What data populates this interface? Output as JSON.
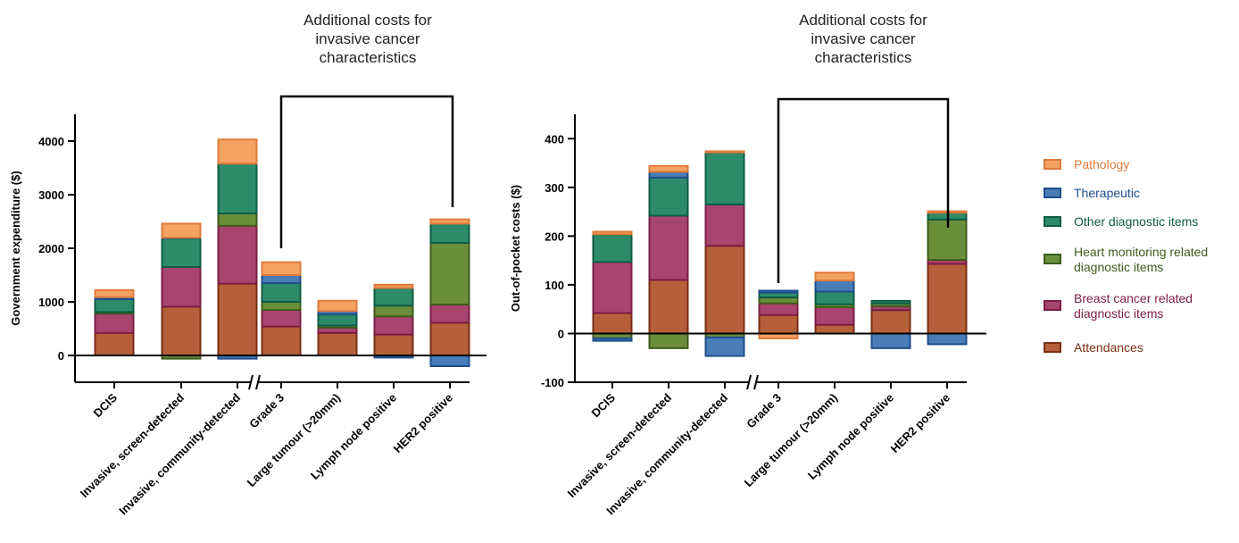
{
  "legend": [
    {
      "key": "pathology",
      "label": "Pathology",
      "fill": "#F4A261",
      "stroke": "#E07A3A",
      "text": "#E07A3A"
    },
    {
      "key": "therapeutic",
      "label": "Therapeutic",
      "fill": "#4A7DB8",
      "stroke": "#1F4E8C",
      "text": "#1F4E8C"
    },
    {
      "key": "other",
      "label": "Other diagnostic items",
      "fill": "#2E8B6A",
      "stroke": "#0E5C45",
      "text": "#0E5C45"
    },
    {
      "key": "heart",
      "label": "Heart monitoring related\ndiagnostic items",
      "fill": "#6B8E3A",
      "stroke": "#3D5C1C",
      "text": "#3D5C1C"
    },
    {
      "key": "breast",
      "label": "Breast cancer related\ndiagnostic items",
      "fill": "#A8456E",
      "stroke": "#7A1E45",
      "text": "#7A1E45"
    },
    {
      "key": "attend",
      "label": "Attendances",
      "fill": "#B5603A",
      "stroke": "#7A2E15",
      "text": "#7A2E15"
    }
  ],
  "chart_data": [
    {
      "type": "bar",
      "stacked": true,
      "ylabel": "Government expenditure ($)",
      "ylim": [
        -500,
        4500
      ],
      "yticks": [
        0,
        1000,
        2000,
        3000,
        4000
      ],
      "annotation": "Additional costs for\ninvasive cancer\ncharacteristics",
      "categories": [
        "DCIS",
        "Invasive, screen-detected",
        "Invasive, community-detected",
        "Grade 3",
        "Large tumour (>20mm)",
        "Lymph node positive",
        "HER2 positive"
      ],
      "axis_break_after": 2,
      "series": [
        {
          "key": "attend",
          "values": [
            420,
            910,
            1340,
            540,
            420,
            390,
            610
          ]
        },
        {
          "key": "breast",
          "values": [
            360,
            740,
            1080,
            310,
            100,
            340,
            340
          ]
        },
        {
          "key": "heart",
          "values": [
            30,
            -60,
            230,
            150,
            40,
            200,
            1150
          ]
        },
        {
          "key": "other",
          "values": [
            240,
            540,
            930,
            350,
            210,
            330,
            360
          ]
        },
        {
          "key": "therapeutic",
          "values": [
            40,
            10,
            -60,
            150,
            60,
            -40,
            -200
          ]
        },
        {
          "key": "pathology",
          "values": [
            130,
            260,
            450,
            240,
            190,
            60,
            80
          ]
        }
      ]
    },
    {
      "type": "bar",
      "stacked": true,
      "ylabel": "Out-of-pocket costs ($)",
      "ylim": [
        -100,
        450
      ],
      "yticks": [
        -100,
        0,
        100,
        200,
        300,
        400
      ],
      "annotation": "Additional costs for\ninvasive cancer\ncharacteristics",
      "categories": [
        "DCIS",
        "Invasive, screen-detected",
        "Invasive, community-detected",
        "Grade 3",
        "Large tumour (>20mm)",
        "Lymph node positive",
        "HER2 positive"
      ],
      "axis_break_after": 2,
      "series": [
        {
          "key": "attend",
          "values": [
            42,
            110,
            180,
            38,
            18,
            48,
            143
          ]
        },
        {
          "key": "breast",
          "values": [
            105,
            132,
            85,
            24,
            36,
            8,
            8
          ]
        },
        {
          "key": "heart",
          "values": [
            -10,
            -30,
            -8,
            12,
            6,
            6,
            83
          ]
        },
        {
          "key": "other",
          "values": [
            57,
            78,
            107,
            10,
            26,
            5,
            14
          ]
        },
        {
          "key": "therapeutic",
          "values": [
            -5,
            12,
            -38,
            4,
            23,
            -30,
            -22
          ]
        },
        {
          "key": "pathology",
          "values": [
            5,
            12,
            2,
            -10,
            16,
            0,
            3
          ]
        }
      ]
    }
  ]
}
